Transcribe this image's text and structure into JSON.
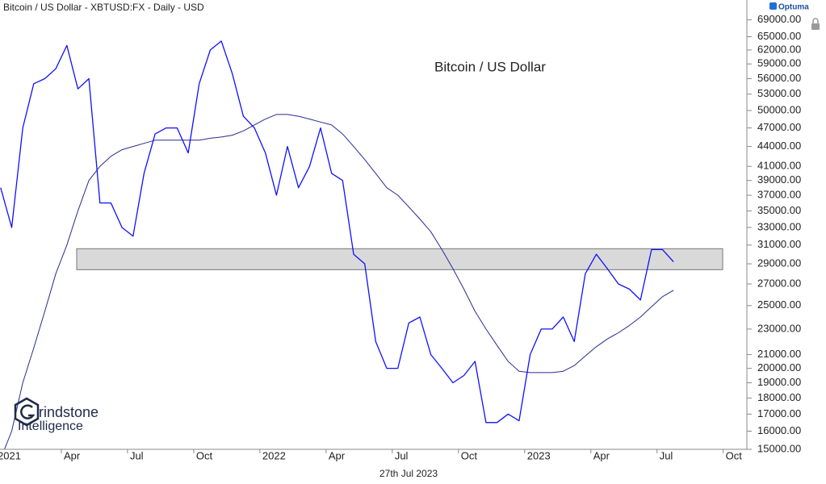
{
  "header": {
    "title": "Bitcoin / US Dollar - XBTUSD:FX - Daily - USD",
    "brand": "Optuma"
  },
  "footer": {
    "date": "27th Jul 2023"
  },
  "watermark": {
    "line1": "rindstone",
    "line2": "Intelligence"
  },
  "chart_data": {
    "type": "line",
    "log_scale": true,
    "x": [
      "2021-01",
      "2021-01",
      "2021-02",
      "2021-02",
      "2021-03",
      "2021-03",
      "2021-04",
      "2021-04",
      "2021-05",
      "2021-05",
      "2021-06",
      "2021-06",
      "2021-07",
      "2021-07",
      "2021-08",
      "2021-08",
      "2021-09",
      "2021-09",
      "2021-10",
      "2021-10",
      "2021-11",
      "2021-11",
      "2021-12",
      "2021-12",
      "2022-01",
      "2022-01",
      "2022-02",
      "2022-02",
      "2022-03",
      "2022-03",
      "2022-04",
      "2022-04",
      "2022-05",
      "2022-05",
      "2022-06",
      "2022-06",
      "2022-07",
      "2022-07",
      "2022-08",
      "2022-08",
      "2022-09",
      "2022-09",
      "2022-10",
      "2022-10",
      "2022-11",
      "2022-11",
      "2022-12",
      "2022-12",
      "2023-01",
      "2023-01",
      "2023-02",
      "2023-02",
      "2023-03",
      "2023-03",
      "2023-04",
      "2023-04",
      "2023-05",
      "2023-05",
      "2023-06",
      "2023-06",
      "2023-07",
      "2023-07"
    ],
    "series": [
      {
        "name": "Bitcoin / US Dollar",
        "color": "#1010ff",
        "values": [
          38000,
          33000,
          47000,
          55000,
          56000,
          58000,
          63000,
          54000,
          56000,
          36000,
          36000,
          33000,
          32000,
          40000,
          46000,
          47000,
          47000,
          43000,
          55000,
          62000,
          64000,
          57000,
          49000,
          47000,
          43000,
          37000,
          44000,
          38000,
          41000,
          47000,
          40000,
          39000,
          30000,
          29000,
          22000,
          20000,
          20000,
          23500,
          24000,
          21000,
          20000,
          19000,
          19500,
          20500,
          16500,
          16500,
          17000,
          16600,
          21000,
          23000,
          23000,
          24000,
          22000,
          28000,
          30000,
          28500,
          27000,
          26500,
          25500,
          30500,
          30500,
          29200
        ]
      },
      {
        "color": "#2a2a90",
        "values": [
          14500,
          16000,
          19000,
          21500,
          24500,
          28000,
          31000,
          35000,
          39000,
          41000,
          42500,
          43500,
          44000,
          44500,
          45000,
          45000,
          45000,
          45000,
          45000,
          45300,
          45500,
          45800,
          46500,
          47500,
          48500,
          49300,
          49300,
          49000,
          48500,
          48000,
          47500,
          46000,
          44000,
          42000,
          40000,
          38000,
          37000,
          35500,
          34000,
          32500,
          30500,
          28500,
          26500,
          24500,
          23000,
          21700,
          20500,
          19800,
          19700,
          19700,
          19700,
          19800,
          20200,
          20900,
          21600,
          22200,
          22700,
          23300,
          24000,
          24900,
          25800,
          26400
        ]
      }
    ],
    "zone": {
      "values": [
        28400,
        30600
      ],
      "color": "#d9d9d9"
    },
    "xlim": [
      "2021-01",
      "2023-11"
    ],
    "xticks": [
      {
        "value": "2021-01",
        "label": "2021"
      },
      {
        "value": "2021-04",
        "label": "Apr"
      },
      {
        "value": "2021-07",
        "label": "Jul"
      },
      {
        "value": "2021-10",
        "label": "Oct"
      },
      {
        "value": "2022-01",
        "label": "2022"
      },
      {
        "value": "2022-04",
        "label": "Apr"
      },
      {
        "value": "2022-07",
        "label": "Jul"
      },
      {
        "value": "2022-10",
        "label": "Oct"
      },
      {
        "value": "2023-01",
        "label": "2023"
      },
      {
        "value": "2023-04",
        "label": "Apr"
      },
      {
        "value": "2023-07",
        "label": "Jul"
      },
      {
        "value": "2023-10",
        "label": "Oct"
      }
    ],
    "ylim": [
      15000,
      73000
    ],
    "yticks": [
      {
        "value": 15000,
        "label": "15000.00"
      },
      {
        "value": 16000,
        "label": "16000.00"
      },
      {
        "value": 17000,
        "label": "17000.00"
      },
      {
        "value": 18000,
        "label": "18000.00"
      },
      {
        "value": 19000,
        "label": "19000.00"
      },
      {
        "value": 20000,
        "label": "20000.00"
      },
      {
        "value": 21000,
        "label": "21000.00"
      },
      {
        "value": 23000,
        "label": "23000.00"
      },
      {
        "value": 25000,
        "label": "25000.00"
      },
      {
        "value": 27000,
        "label": "27000.00"
      },
      {
        "value": 29000,
        "label": "29000.00"
      },
      {
        "value": 31000,
        "label": "31000.00"
      },
      {
        "value": 33000,
        "label": "33000.00"
      },
      {
        "value": 35000,
        "label": "35000.00"
      },
      {
        "value": 37000,
        "label": "37000.00"
      },
      {
        "value": 39000,
        "label": "39000.00"
      },
      {
        "value": 41000,
        "label": "41000.00"
      },
      {
        "value": 44000,
        "label": "44000.00"
      },
      {
        "value": 47000,
        "label": "47000.00"
      },
      {
        "value": 50000,
        "label": "50000.00"
      },
      {
        "value": 53000,
        "label": "53000.00"
      },
      {
        "value": 56000,
        "label": "56000.00"
      },
      {
        "value": 59000,
        "label": "59000.00"
      },
      {
        "value": 62000,
        "label": "62000.00"
      },
      {
        "value": 65000,
        "label": "65000.00"
      },
      {
        "value": 69000,
        "label": "69000.00"
      }
    ]
  }
}
